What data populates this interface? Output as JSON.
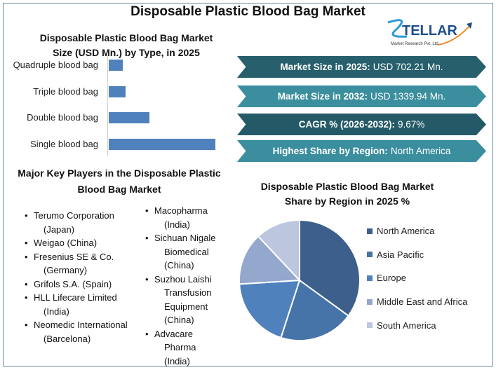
{
  "title": "Disposable Plastic Blood Bag Market",
  "logo": {
    "text": "STELLAR",
    "subtext": "Market Research Pvt. Ltd."
  },
  "bar_chart_title_line1": "Disposable Plastic Blood Bag Market",
  "bar_chart_title_line2": "Size (USD Mn.) by Type, in 2025",
  "banners": [
    {
      "label": "Market Size in 2025:",
      "value": "USD 702.21 Mn.",
      "color": "#275f6c"
    },
    {
      "label": "Market Size in 2032:",
      "value": "USD 1339.94 Mn.",
      "color": "#3b8e9d"
    },
    {
      "label": "CAGR % (2026-2032):",
      "value": "9.67%",
      "color": "#245a67"
    },
    {
      "label": "Highest Share by Region:",
      "value": "North America",
      "color": "#3a8e9e"
    }
  ],
  "players_title_line1": "Major Key Players in the Disposable Plastic",
  "players_title_line2": "Blood Bag Market",
  "players_left": [
    {
      "name": "Terumo Corporation",
      "country": "(Japan)"
    },
    {
      "name": "Weigao (China)",
      "country": ""
    },
    {
      "name": "Fresenius SE & Co.",
      "country": "(Germany)"
    },
    {
      "name": "Grifols S.A. (Spain)",
      "country": ""
    },
    {
      "name": "HLL Lifecare Limited",
      "country": "(India)"
    },
    {
      "name": "Neomedic International",
      "country": "(Barcelona)"
    }
  ],
  "players_right": [
    {
      "name": "Macopharma",
      "country": "(India)"
    },
    {
      "name": "Sichuan Nigale Biomedical",
      "country": "(China)"
    },
    {
      "name": "Suzhou Laishi Transfusion Equipment",
      "country": "(China)"
    },
    {
      "name": "Advacare Pharma",
      "country": "(India)"
    }
  ],
  "pie_title_line1": "Disposable Plastic Blood Bag Market",
  "pie_title_line2": "Share by Region in 2025 %",
  "chart_data": [
    {
      "type": "bar",
      "orientation": "horizontal",
      "title": "Disposable Plastic Blood Bag Market Size (USD Mn.) by Type, in 2025",
      "categories": [
        "Quadruple blood bag",
        "Triple blood bag",
        "Double blood bag",
        "Single blood bag"
      ],
      "values": [
        55,
        66,
        160,
        421
      ],
      "color": "#4f81bd",
      "grid": false
    },
    {
      "type": "pie",
      "title": "Disposable Plastic Blood Bag Market Share by Region in 2025 %",
      "categories": [
        "North America",
        "Asia Pacific",
        "Europe",
        "Middle East and Africa",
        "South America"
      ],
      "values": [
        35,
        20,
        19,
        14,
        12
      ],
      "colors": [
        "#3d5f8c",
        "#4673a8",
        "#4f81bd",
        "#94a7cc",
        "#bcc6de"
      ],
      "legend": "right"
    }
  ]
}
